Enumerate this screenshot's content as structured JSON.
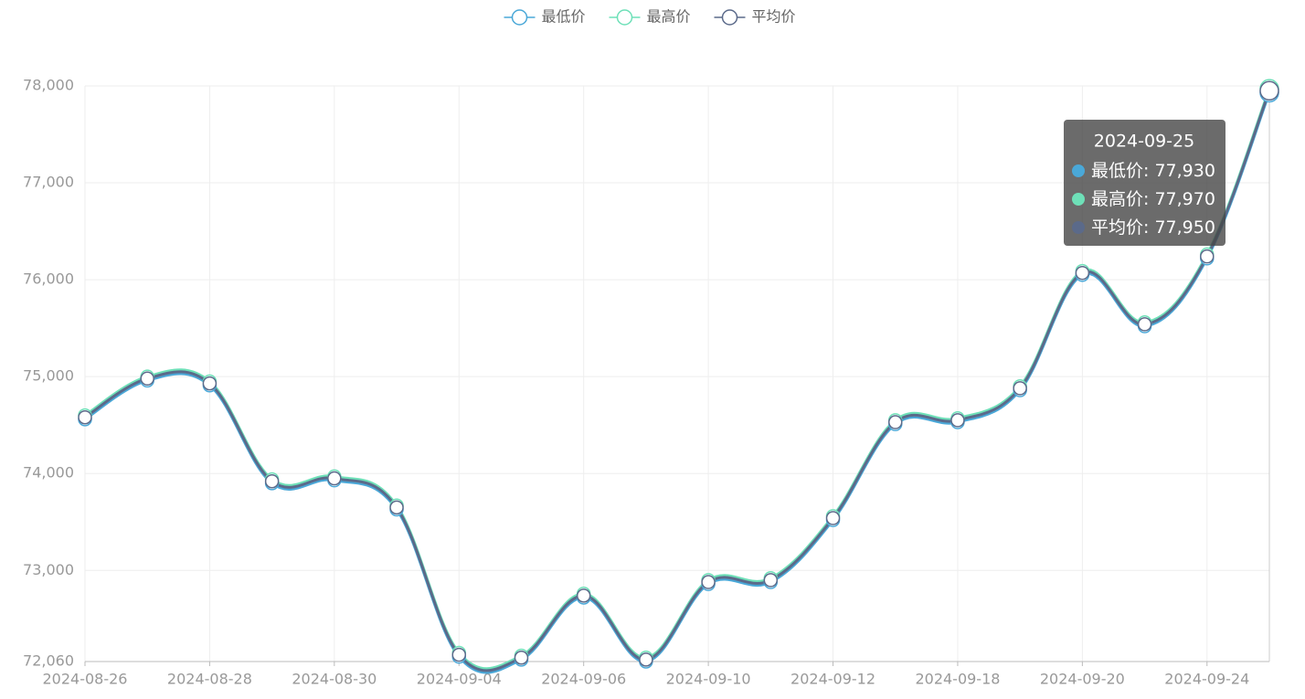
{
  "chart_data": {
    "type": "line",
    "smooth": true,
    "grid": true,
    "legend": "top",
    "x_label_interval": 2,
    "categories": [
      "2024-08-26",
      null,
      "2024-08-28",
      null,
      "2024-08-30",
      null,
      "2024-09-04",
      null,
      "2024-09-06",
      null,
      "2024-09-10",
      null,
      "2024-09-12",
      null,
      "2024-09-18",
      null,
      "2024-09-20",
      null,
      "2024-09-24",
      "2024-09-25"
    ],
    "series": [
      {
        "name": "最低价",
        "color": "#4aa8d8",
        "values": [
          74560,
          74960,
          74910,
          73900,
          73930,
          73630,
          72110,
          72080,
          72720,
          72060,
          72860,
          72880,
          73520,
          74510,
          74530,
          74860,
          76050,
          75520,
          76220,
          77930
        ],
        "value_labels": [
          null,
          null,
          null,
          null,
          null,
          null,
          null,
          null,
          null,
          null,
          null,
          null,
          null,
          null,
          null,
          null,
          null,
          null,
          null,
          "77,930"
        ]
      },
      {
        "name": "最高价",
        "color": "#6ee0b8",
        "values": [
          74600,
          75000,
          74950,
          73940,
          73970,
          73670,
          72150,
          72120,
          72760,
          72100,
          72900,
          72920,
          73560,
          74550,
          74570,
          74900,
          76090,
          75560,
          76260,
          77970
        ],
        "value_labels": [
          null,
          null,
          null,
          null,
          null,
          null,
          null,
          null,
          null,
          null,
          null,
          null,
          null,
          null,
          null,
          null,
          null,
          null,
          null,
          "77,970"
        ]
      },
      {
        "name": "平均价",
        "color": "#5b6a8a",
        "values": [
          74580,
          74980,
          74930,
          73920,
          73950,
          73650,
          72130,
          72100,
          72740,
          72080,
          72880,
          72900,
          73540,
          74530,
          74550,
          74880,
          76070,
          75540,
          76240,
          77950
        ],
        "value_labels": [
          null,
          null,
          null,
          null,
          null,
          null,
          null,
          null,
          null,
          null,
          null,
          null,
          null,
          null,
          null,
          null,
          null,
          null,
          null,
          "77,950"
        ]
      }
    ],
    "ylim": [
      72060,
      78000
    ],
    "yticks": [
      {
        "value": 72060,
        "label": "72,060"
      },
      {
        "value": 73000,
        "label": "73,000"
      },
      {
        "value": 74000,
        "label": "74,000"
      },
      {
        "value": 75000,
        "label": "75,000"
      },
      {
        "value": 76000,
        "label": "76,000"
      },
      {
        "value": 77000,
        "label": "77,000"
      },
      {
        "value": 78000,
        "label": "78,000"
      }
    ]
  }
}
